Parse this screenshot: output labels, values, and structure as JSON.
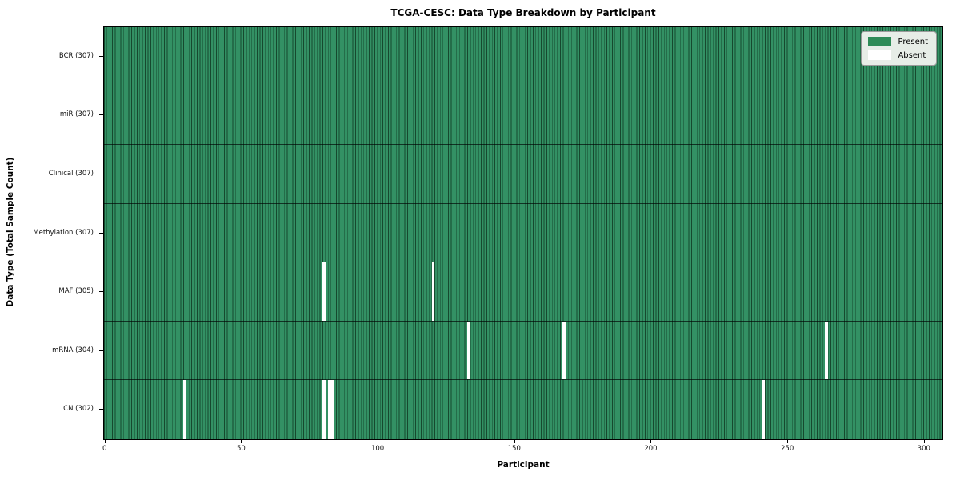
{
  "chart_data": {
    "type": "heatmap",
    "title": "TCGA-CESC: Data Type Breakdown by Participant",
    "xlabel": "Participant",
    "ylabel": "Data Type (Total Sample Count)",
    "x_ticks": [
      0,
      50,
      100,
      150,
      200,
      250,
      300
    ],
    "x_range": [
      -0.5,
      306.5
    ],
    "n_participants": 307,
    "grid": "off",
    "legend_position": "upper right",
    "legend": [
      {
        "label": "Present",
        "color": "#2e8b57"
      },
      {
        "label": "Absent",
        "color": "#ffffff"
      }
    ],
    "colors": {
      "present_fill": "#339164",
      "present_edge": "#16492e",
      "absent_fill": "#ffffff",
      "row_separator": "#000000",
      "plot_border": "#000000"
    },
    "rows": [
      {
        "label": "BCR (307)",
        "data_type": "BCR",
        "total_sample_count": 307,
        "absent_participants": []
      },
      {
        "label": "miR (307)",
        "data_type": "miR",
        "total_sample_count": 307,
        "absent_participants": []
      },
      {
        "label": "Clinical (307)",
        "data_type": "Clinical",
        "total_sample_count": 307,
        "absent_participants": []
      },
      {
        "label": "Methylation (307)",
        "data_type": "Methylation",
        "total_sample_count": 307,
        "absent_participants": []
      },
      {
        "label": "MAF (305)",
        "data_type": "MAF",
        "total_sample_count": 305,
        "absent_participants": [
          80,
          120
        ]
      },
      {
        "label": "mRNA (304)",
        "data_type": "mRNA",
        "total_sample_count": 304,
        "absent_participants": [
          133,
          168,
          264
        ]
      },
      {
        "label": "CN (302)",
        "data_type": "CN",
        "total_sample_count": 302,
        "absent_participants": [
          29,
          80,
          82,
          83,
          241
        ]
      }
    ]
  }
}
